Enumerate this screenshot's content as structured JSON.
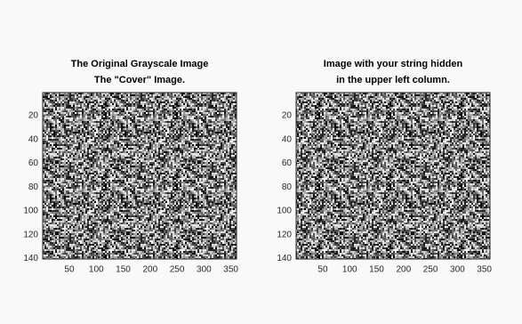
{
  "chart_data": [
    {
      "type": "image",
      "title": [
        "The Original Grayscale Image",
        "The \"Cover\" Image."
      ],
      "xlim": [
        0.5,
        360.5
      ],
      "ylim": [
        0.5,
        140.5
      ],
      "xticks": [
        50,
        100,
        150,
        200,
        250,
        300,
        350
      ],
      "yticks": [
        20,
        40,
        60,
        80,
        100,
        120,
        140
      ]
    },
    {
      "type": "image",
      "title": [
        "Image with your string hidden",
        "in the upper left column."
      ],
      "xlim": [
        0.5,
        360.5
      ],
      "ylim": [
        0.5,
        140.5
      ],
      "xticks": [
        50,
        100,
        150,
        200,
        250,
        300,
        350
      ],
      "yticks": [
        20,
        40,
        60,
        80,
        100,
        120,
        140
      ]
    }
  ]
}
